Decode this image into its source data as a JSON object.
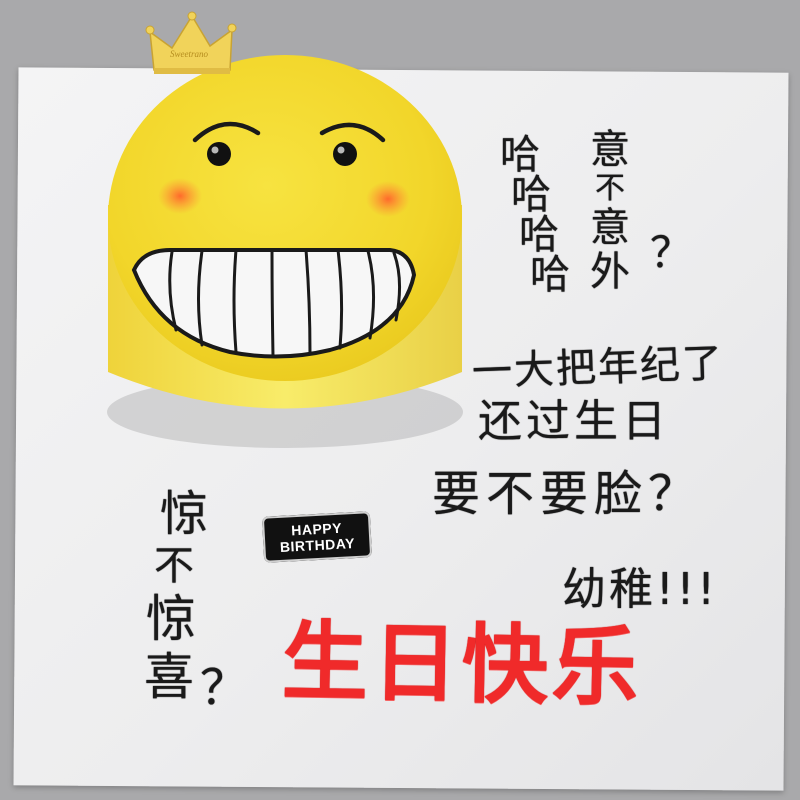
{
  "scene": {
    "colors": {
      "background": "#a9a9ab",
      "board": "#eeeeef",
      "cake_yellow": "#f3d928",
      "icing_red": "#f02a2a",
      "icing_black": "#1a1a1a",
      "crown_gold": "#f1d35a"
    },
    "crown": {
      "engraving": "Sweetrano"
    },
    "badge": {
      "line1": "HAPPY",
      "line2": "BIRTHDAY"
    },
    "writing": {
      "col_ha": [
        "哈",
        "哈",
        "哈",
        "哈"
      ],
      "col_yi": [
        "意",
        "不",
        "意",
        "外"
      ],
      "q1": "？",
      "line_nian": "一大把年纪了",
      "line_guo": "还过生日",
      "line_lian": "要不要脸？",
      "line_youzhi": "幼稚!!!",
      "col_jing": [
        "惊",
        "不",
        "惊",
        "喜"
      ],
      "q2": "？",
      "birthday": "生日快乐"
    }
  }
}
